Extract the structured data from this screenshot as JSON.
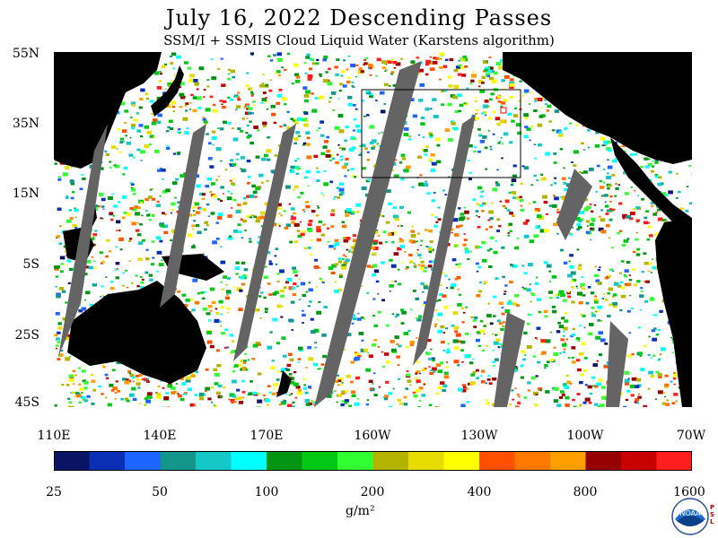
{
  "title": "July 16, 2022  Descending Passes",
  "subtitle": "SSM/I + SSMIS Cloud Liquid Water (Karstens algorithm)",
  "lat_labels": [
    "55N",
    "35N",
    "15N",
    "5S",
    "25S",
    "45S"
  ],
  "lon_labels": [
    "110E",
    "140E",
    "170E",
    "160W",
    "130W",
    "100W",
    "70W"
  ],
  "colorbar": {
    "ticks": [
      "25",
      "50",
      "100",
      "200",
      "400",
      "800",
      "1600"
    ],
    "units": "g/m²",
    "colors": [
      "#0a1464",
      "#0a2eb4",
      "#1e64ff",
      "#14968c",
      "#14c8c8",
      "#00ffff",
      "#009614",
      "#00c814",
      "#32ff32",
      "#b4b400",
      "#e6dc00",
      "#ffff00",
      "#ff5000",
      "#ff7800",
      "#ffa000",
      "#960000",
      "#c80000",
      "#ff1e1e"
    ]
  },
  "map": {
    "land_color": "#000000",
    "no_data_color": "#646464",
    "no_cloud_color": "#ffffff"
  },
  "logo": {
    "text": "NOAA",
    "side_text": "PSL"
  }
}
